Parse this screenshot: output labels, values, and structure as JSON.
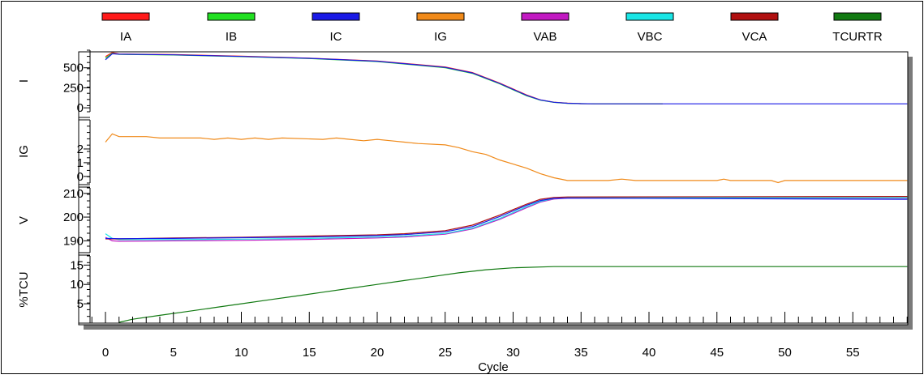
{
  "chart_data": {
    "type": "line",
    "xlabel": "Cycle",
    "x_ticks": [
      0,
      5,
      10,
      15,
      20,
      25,
      30,
      35,
      40,
      45,
      50,
      55
    ],
    "xlim": [
      -1.5,
      59
    ],
    "grid": false,
    "legend_position": "top",
    "legend": [
      {
        "name": "IA",
        "color": "#ff1a1a"
      },
      {
        "name": "IB",
        "color": "#22e022"
      },
      {
        "name": "IC",
        "color": "#1a1ae6"
      },
      {
        "name": "IG",
        "color": "#f08a1a"
      },
      {
        "name": "VAB",
        "color": "#c21ac2"
      },
      {
        "name": "VBC",
        "color": "#1ae6e6"
      },
      {
        "name": "VCA",
        "color": "#b01010"
      },
      {
        "name": "TCURTR",
        "color": "#127a12"
      }
    ],
    "panels": [
      {
        "ylabel": "I",
        "ylim": [
          -120,
          760
        ],
        "y_ticks": [
          0,
          250,
          500
        ],
        "series": [
          {
            "name": "IA",
            "color": "#ff1a1a",
            "points": [
              [
                0,
                640
              ],
              [
                0.5,
                690
              ],
              [
                1,
                672
              ],
              [
                5,
                665
              ],
              [
                10,
                645
              ],
              [
                15,
                620
              ],
              [
                20,
                585
              ],
              [
                25,
                510
              ],
              [
                27,
                440
              ],
              [
                29,
                310
              ],
              [
                31,
                160
              ],
              [
                32,
                100
              ],
              [
                33,
                70
              ],
              [
                34,
                58
              ],
              [
                35,
                52
              ],
              [
                36,
                50
              ],
              [
                41,
                50
              ]
            ]
          },
          {
            "name": "IB",
            "color": "#22e022",
            "points": [
              [
                0,
                620
              ],
              [
                0.5,
                680
              ],
              [
                1,
                668
              ],
              [
                5,
                660
              ],
              [
                10,
                640
              ],
              [
                15,
                615
              ],
              [
                20,
                578
              ],
              [
                25,
                500
              ],
              [
                27,
                430
              ],
              [
                29,
                300
              ],
              [
                31,
                150
              ],
              [
                32,
                95
              ],
              [
                33,
                68
              ],
              [
                34,
                56
              ],
              [
                35,
                52
              ],
              [
                36,
                50
              ],
              [
                41,
                50
              ]
            ]
          },
          {
            "name": "IC",
            "color": "#1a1ae6",
            "points": [
              [
                0,
                600
              ],
              [
                0.5,
                675
              ],
              [
                1,
                670
              ],
              [
                5,
                662
              ],
              [
                10,
                642
              ],
              [
                15,
                618
              ],
              [
                20,
                582
              ],
              [
                25,
                505
              ],
              [
                27,
                435
              ],
              [
                29,
                305
              ],
              [
                31,
                155
              ],
              [
                32,
                98
              ],
              [
                33,
                69
              ],
              [
                34,
                57
              ],
              [
                35,
                52
              ],
              [
                36,
                50
              ],
              [
                59,
                50
              ]
            ]
          }
        ]
      },
      {
        "ylabel": "IG",
        "ylim": [
          -0.6,
          4.3
        ],
        "y_ticks": [
          0,
          1,
          2
        ],
        "series": [
          {
            "name": "IG",
            "color": "#f08a1a",
            "points": [
              [
                0,
                2.5
              ],
              [
                0.5,
                3.1
              ],
              [
                1,
                2.9
              ],
              [
                3,
                2.9
              ],
              [
                4,
                2.8
              ],
              [
                7,
                2.8
              ],
              [
                8,
                2.7
              ],
              [
                9,
                2.8
              ],
              [
                10,
                2.7
              ],
              [
                11,
                2.8
              ],
              [
                12,
                2.7
              ],
              [
                13,
                2.8
              ],
              [
                16,
                2.7
              ],
              [
                17,
                2.8
              ],
              [
                18,
                2.7
              ],
              [
                19,
                2.6
              ],
              [
                20,
                2.7
              ],
              [
                21,
                2.6
              ],
              [
                22,
                2.5
              ],
              [
                23,
                2.4
              ],
              [
                25,
                2.3
              ],
              [
                26,
                2.1
              ],
              [
                27,
                1.8
              ],
              [
                28,
                1.6
              ],
              [
                29,
                1.2
              ],
              [
                30,
                0.9
              ],
              [
                31,
                0.6
              ],
              [
                32,
                0.2
              ],
              [
                33,
                -0.1
              ],
              [
                34,
                -0.3
              ],
              [
                37,
                -0.3
              ],
              [
                38,
                -0.2
              ],
              [
                39,
                -0.3
              ],
              [
                45,
                -0.3
              ],
              [
                45.5,
                -0.2
              ],
              [
                46,
                -0.3
              ],
              [
                49,
                -0.3
              ],
              [
                49.5,
                -0.45
              ],
              [
                50,
                -0.3
              ],
              [
                59,
                -0.3
              ]
            ]
          }
        ]
      },
      {
        "ylabel": "V",
        "ylim": [
          185,
          213
        ],
        "y_ticks": [
          190,
          200,
          210
        ],
        "series": [
          {
            "name": "VAB",
            "color": "#c21ac2",
            "points": [
              [
                0,
                191.5
              ],
              [
                0.5,
                190
              ],
              [
                1,
                189.8
              ],
              [
                5,
                190
              ],
              [
                10,
                190.2
              ],
              [
                15,
                190.6
              ],
              [
                20,
                191.2
              ],
              [
                22,
                191.6
              ],
              [
                25,
                192.8
              ],
              [
                27,
                195
              ],
              [
                29,
                199
              ],
              [
                31,
                204
              ],
              [
                32,
                206.3
              ],
              [
                33,
                207.6
              ],
              [
                34,
                208
              ],
              [
                59,
                208
              ]
            ]
          },
          {
            "name": "VBC",
            "color": "#1ae6e6",
            "points": [
              [
                0,
                193
              ],
              [
                0.5,
                191
              ],
              [
                1,
                190.5
              ],
              [
                5,
                190.5
              ],
              [
                10,
                190.7
              ],
              [
                15,
                191
              ],
              [
                20,
                191.6
              ],
              [
                22,
                192
              ],
              [
                25,
                193.1
              ],
              [
                27,
                195.3
              ],
              [
                29,
                199.4
              ],
              [
                31,
                204.4
              ],
              [
                32,
                206.6
              ],
              [
                33,
                207.8
              ],
              [
                34,
                208.2
              ],
              [
                59,
                208.2
              ]
            ]
          },
          {
            "name": "VCA",
            "color": "#b01010",
            "points": [
              [
                0,
                190.8
              ],
              [
                1,
                190.8
              ],
              [
                5,
                191.2
              ],
              [
                10,
                191.5
              ],
              [
                15,
                192
              ],
              [
                20,
                192.5
              ],
              [
                22,
                193
              ],
              [
                25,
                194.3
              ],
              [
                27,
                196.6
              ],
              [
                29,
                200.8
              ],
              [
                31,
                205.5
              ],
              [
                32,
                207.5
              ],
              [
                33,
                208.3
              ],
              [
                34,
                208.5
              ],
              [
                59,
                208.7
              ]
            ]
          },
          {
            "name": "VBC",
            "color": "#1a1ae6",
            "points": [
              [
                0,
                191
              ],
              [
                1,
                190.9
              ],
              [
                5,
                191
              ],
              [
                10,
                191.3
              ],
              [
                15,
                191.6
              ],
              [
                20,
                192.2
              ],
              [
                22,
                192.6
              ],
              [
                25,
                193.8
              ],
              [
                27,
                196
              ],
              [
                29,
                200.2
              ],
              [
                31,
                205
              ],
              [
                32,
                207
              ],
              [
                33,
                207.9
              ],
              [
                34,
                208
              ],
              [
                59,
                207.5
              ]
            ]
          }
        ]
      },
      {
        "ylabel": "%TCU",
        "ylim": [
          0,
          18
        ],
        "y_ticks": [
          5,
          10,
          15
        ],
        "series": [
          {
            "name": "TCURTR",
            "color": "#127a12",
            "points": [
              [
                1,
                0.2
              ],
              [
                2,
                1
              ],
              [
                4,
                2
              ],
              [
                6,
                3
              ],
              [
                8,
                4
              ],
              [
                10,
                5
              ],
              [
                12,
                6
              ],
              [
                14,
                7
              ],
              [
                16,
                8
              ],
              [
                18,
                9
              ],
              [
                20,
                10
              ],
              [
                22,
                11
              ],
              [
                24,
                12
              ],
              [
                26,
                13
              ],
              [
                28,
                13.8
              ],
              [
                30,
                14.3
              ],
              [
                33,
                14.6
              ],
              [
                59,
                14.6
              ]
            ]
          }
        ]
      }
    ]
  }
}
